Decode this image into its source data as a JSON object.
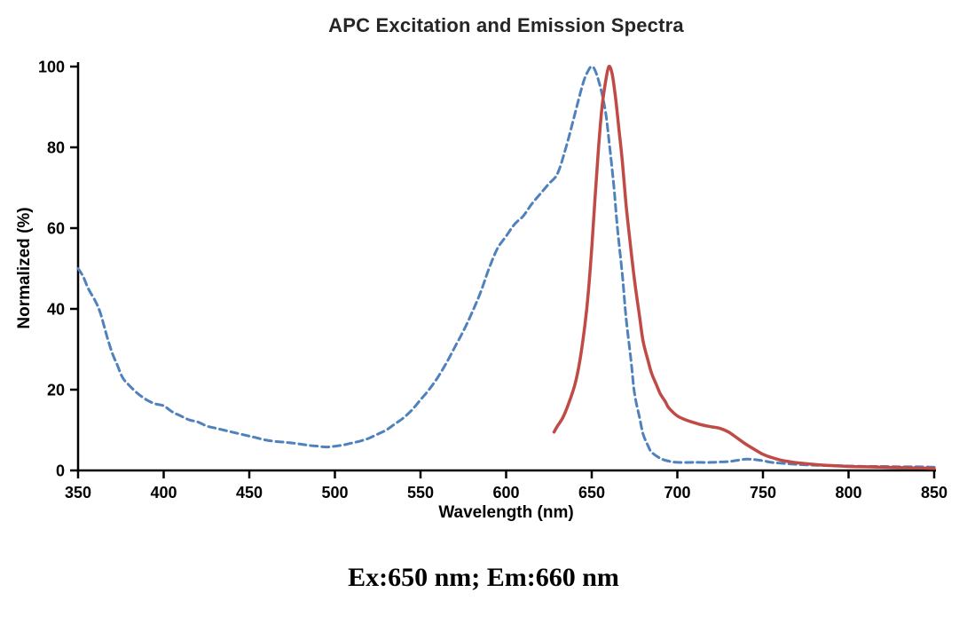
{
  "caption": {
    "text": "Ex:650 nm; Em:660 nm"
  },
  "chart_data": {
    "type": "line",
    "title": "APC Excitation and Emission Spectra",
    "xlabel": "Wavelength (nm)",
    "ylabel": "Normalized (%)",
    "xlim": [
      350,
      850
    ],
    "ylim": [
      0,
      100
    ],
    "xticks": [
      350,
      400,
      450,
      500,
      550,
      600,
      650,
      700,
      750,
      800,
      850
    ],
    "yticks": [
      0,
      20,
      40,
      60,
      80,
      100
    ],
    "grid": false,
    "legend": "none",
    "axis_color": "#000000",
    "series": [
      {
        "name": "Excitation",
        "peak_nm": 650,
        "color": "#4f81bd",
        "style": "dashed",
        "dash": "8 5",
        "width": 3,
        "points": [
          [
            350,
            50
          ],
          [
            353,
            48
          ],
          [
            356,
            45
          ],
          [
            360,
            42
          ],
          [
            363,
            39
          ],
          [
            367,
            33
          ],
          [
            370,
            29
          ],
          [
            373,
            26
          ],
          [
            376,
            23
          ],
          [
            380,
            21
          ],
          [
            385,
            19
          ],
          [
            390,
            17.5
          ],
          [
            395,
            16.5
          ],
          [
            400,
            16
          ],
          [
            405,
            14.5
          ],
          [
            410,
            13.5
          ],
          [
            415,
            12.5
          ],
          [
            420,
            12
          ],
          [
            425,
            11
          ],
          [
            430,
            10.5
          ],
          [
            435,
            10
          ],
          [
            440,
            9.5
          ],
          [
            445,
            9
          ],
          [
            450,
            8.5
          ],
          [
            455,
            8
          ],
          [
            460,
            7.5
          ],
          [
            465,
            7.2
          ],
          [
            470,
            7
          ],
          [
            475,
            6.8
          ],
          [
            480,
            6.5
          ],
          [
            485,
            6.2
          ],
          [
            490,
            6
          ],
          [
            495,
            5.8
          ],
          [
            500,
            6
          ],
          [
            505,
            6.3
          ],
          [
            510,
            6.8
          ],
          [
            515,
            7.3
          ],
          [
            520,
            8
          ],
          [
            525,
            9
          ],
          [
            530,
            10
          ],
          [
            535,
            11.5
          ],
          [
            540,
            13
          ],
          [
            545,
            15
          ],
          [
            550,
            17.5
          ],
          [
            555,
            20
          ],
          [
            560,
            23
          ],
          [
            565,
            26.5
          ],
          [
            570,
            30.5
          ],
          [
            575,
            34.5
          ],
          [
            580,
            39
          ],
          [
            585,
            44
          ],
          [
            590,
            50
          ],
          [
            595,
            55
          ],
          [
            600,
            58
          ],
          [
            605,
            61
          ],
          [
            610,
            63
          ],
          [
            615,
            66
          ],
          [
            620,
            68.5
          ],
          [
            625,
            71
          ],
          [
            630,
            73.5
          ],
          [
            635,
            80
          ],
          [
            640,
            88
          ],
          [
            645,
            96
          ],
          [
            648,
            99
          ],
          [
            650,
            100
          ],
          [
            652,
            99
          ],
          [
            655,
            95
          ],
          [
            658,
            89
          ],
          [
            660,
            82
          ],
          [
            663,
            70
          ],
          [
            665,
            60
          ],
          [
            668,
            48
          ],
          [
            670,
            38
          ],
          [
            673,
            27
          ],
          [
            675,
            19
          ],
          [
            678,
            13
          ],
          [
            680,
            9
          ],
          [
            683,
            6
          ],
          [
            685,
            4.5
          ],
          [
            690,
            3
          ],
          [
            695,
            2.3
          ],
          [
            700,
            2
          ],
          [
            710,
            2
          ],
          [
            720,
            2
          ],
          [
            725,
            2.1
          ],
          [
            730,
            2.2
          ],
          [
            735,
            2.5
          ],
          [
            740,
            2.8
          ],
          [
            745,
            2.7
          ],
          [
            750,
            2.4
          ],
          [
            755,
            2
          ],
          [
            760,
            1.8
          ],
          [
            770,
            1.5
          ],
          [
            780,
            1.3
          ],
          [
            790,
            1.2
          ],
          [
            800,
            1.1
          ],
          [
            810,
            1
          ],
          [
            820,
            1
          ],
          [
            830,
            0.9
          ],
          [
            840,
            0.9
          ],
          [
            850,
            0.8
          ]
        ]
      },
      {
        "name": "Emission",
        "peak_nm": 660,
        "color": "#bf4a46",
        "style": "solid",
        "dash": "",
        "width": 3.5,
        "points": [
          [
            628,
            9.5
          ],
          [
            630,
            11
          ],
          [
            633,
            13
          ],
          [
            636,
            16
          ],
          [
            640,
            21
          ],
          [
            643,
            27
          ],
          [
            646,
            36
          ],
          [
            648,
            44
          ],
          [
            650,
            55
          ],
          [
            652,
            68
          ],
          [
            654,
            80
          ],
          [
            656,
            90
          ],
          [
            658,
            96
          ],
          [
            660,
            100
          ],
          [
            662,
            98
          ],
          [
            664,
            92
          ],
          [
            666,
            84
          ],
          [
            668,
            76
          ],
          [
            670,
            66
          ],
          [
            672,
            58
          ],
          [
            675,
            47
          ],
          [
            678,
            38
          ],
          [
            680,
            32
          ],
          [
            683,
            27
          ],
          [
            685,
            24
          ],
          [
            688,
            21
          ],
          [
            690,
            19
          ],
          [
            693,
            17
          ],
          [
            695,
            15.5
          ],
          [
            700,
            13.5
          ],
          [
            705,
            12.5
          ],
          [
            710,
            11.8
          ],
          [
            715,
            11.2
          ],
          [
            720,
            10.8
          ],
          [
            725,
            10.4
          ],
          [
            730,
            9.5
          ],
          [
            735,
            8
          ],
          [
            740,
            6.5
          ],
          [
            745,
            5.2
          ],
          [
            750,
            4
          ],
          [
            755,
            3.2
          ],
          [
            760,
            2.6
          ],
          [
            765,
            2.2
          ],
          [
            770,
            1.9
          ],
          [
            780,
            1.5
          ],
          [
            790,
            1.2
          ],
          [
            800,
            1
          ],
          [
            810,
            0.9
          ],
          [
            820,
            0.8
          ],
          [
            830,
            0.7
          ],
          [
            840,
            0.6
          ],
          [
            850,
            0.5
          ]
        ]
      }
    ]
  }
}
